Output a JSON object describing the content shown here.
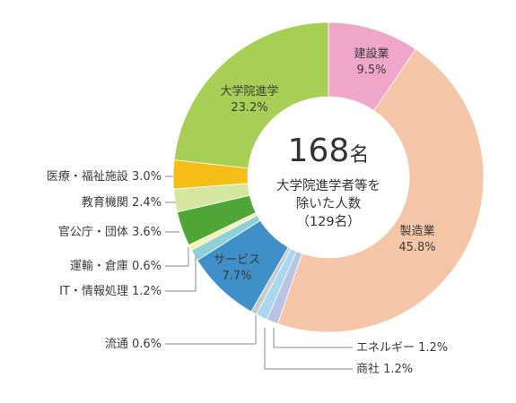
{
  "chart_data": {
    "type": "pie",
    "total": "168",
    "total_unit": "名",
    "center_lines": [
      "大学院進学者等を",
      "除いた人数",
      "（129名）"
    ],
    "slices": [
      {
        "name": "建設業",
        "value": 9.5,
        "pct_label": "9.5%",
        "color": "#f0a6c8",
        "label_place": "inside"
      },
      {
        "name": "製造業",
        "value": 45.8,
        "pct_label": "45.8%",
        "color": "#f5c5a8",
        "label_place": "inside"
      },
      {
        "name": "エネルギー",
        "value": 1.2,
        "pct_label": "1.2%",
        "color": "#b9c4e4",
        "label_place": "outside"
      },
      {
        "name": "商社",
        "value": 1.2,
        "pct_label": "1.2%",
        "color": "#a8d8f0",
        "label_place": "outside"
      },
      {
        "name": "流通",
        "value": 0.6,
        "pct_label": "0.6%",
        "color": "#c9c9c9",
        "label_place": "outside"
      },
      {
        "name": "サービス",
        "value": 7.7,
        "pct_label": "7.7%",
        "color": "#3f8fc8",
        "label_place": "inside"
      },
      {
        "name": "IT・情報処理",
        "value": 1.2,
        "pct_label": "1.2%",
        "color": "#8fd0d8",
        "label_place": "outside"
      },
      {
        "name": "運輸・倉庫",
        "value": 0.6,
        "pct_label": "0.6%",
        "color": "#f3f1b4",
        "label_place": "outside"
      },
      {
        "name": "官公庁・団体",
        "value": 3.6,
        "pct_label": "3.6%",
        "color": "#4fa637",
        "label_place": "outside"
      },
      {
        "name": "教育機関",
        "value": 2.4,
        "pct_label": "2.4%",
        "color": "#d5e79e",
        "label_place": "outside"
      },
      {
        "name": "医療・福祉施設",
        "value": 3.0,
        "pct_label": "3.0%",
        "color": "#f5bd15",
        "label_place": "outside"
      },
      {
        "name": "大学院進学",
        "value": 23.2,
        "pct_label": "23.2%",
        "color": "#a7cf55",
        "label_place": "inside"
      }
    ]
  }
}
